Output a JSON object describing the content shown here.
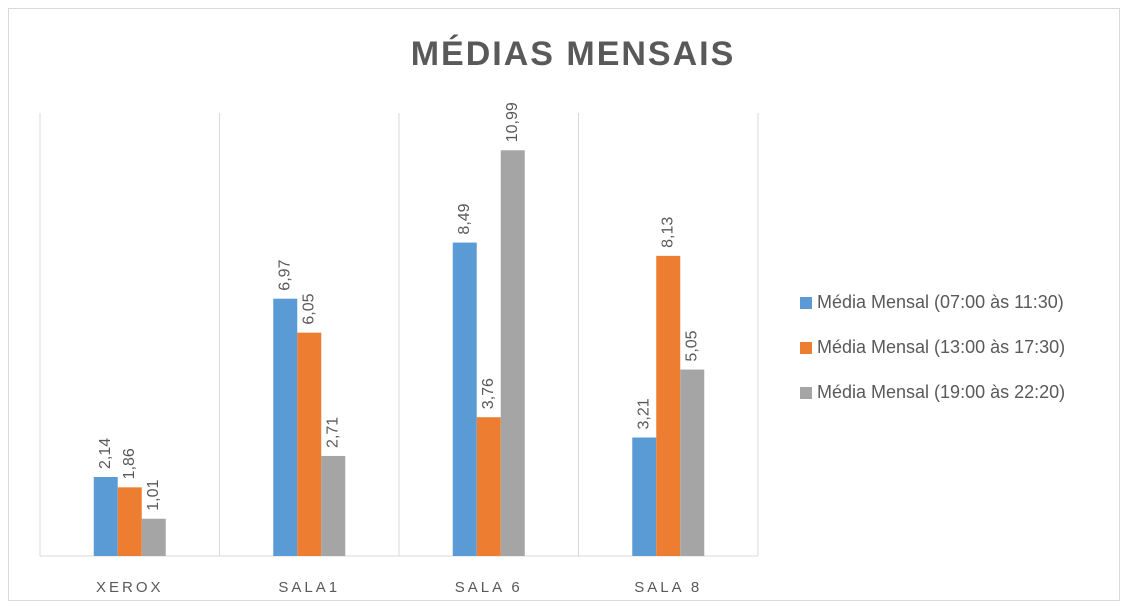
{
  "chart_data": {
    "type": "bar",
    "title": "MÉDIAS MENSAIS",
    "categories": [
      "XEROX",
      "SALA1",
      "SALA 6",
      "SALA 8"
    ],
    "series": [
      {
        "name": "Média Mensal (07:00 às 11:30)",
        "color": "#5b9bd5",
        "values": [
          2.14,
          6.97,
          8.49,
          3.21
        ],
        "value_labels": [
          "2,14",
          "6,97",
          "8,49",
          "3,21"
        ]
      },
      {
        "name": "Média Mensal (13:00 às 17:30)",
        "color": "#ed7d31",
        "values": [
          1.86,
          6.05,
          3.76,
          8.13
        ],
        "value_labels": [
          "1,86",
          "6,05",
          "3,76",
          "8,13"
        ]
      },
      {
        "name": "Média Mensal (19:00 às 22:20)",
        "color": "#a5a5a5",
        "values": [
          1.01,
          2.71,
          10.99,
          5.05
        ],
        "value_labels": [
          "1,01",
          "2,71",
          "10,99",
          "5,05"
        ]
      }
    ],
    "ylim": [
      0,
      12
    ],
    "legend": "right"
  }
}
